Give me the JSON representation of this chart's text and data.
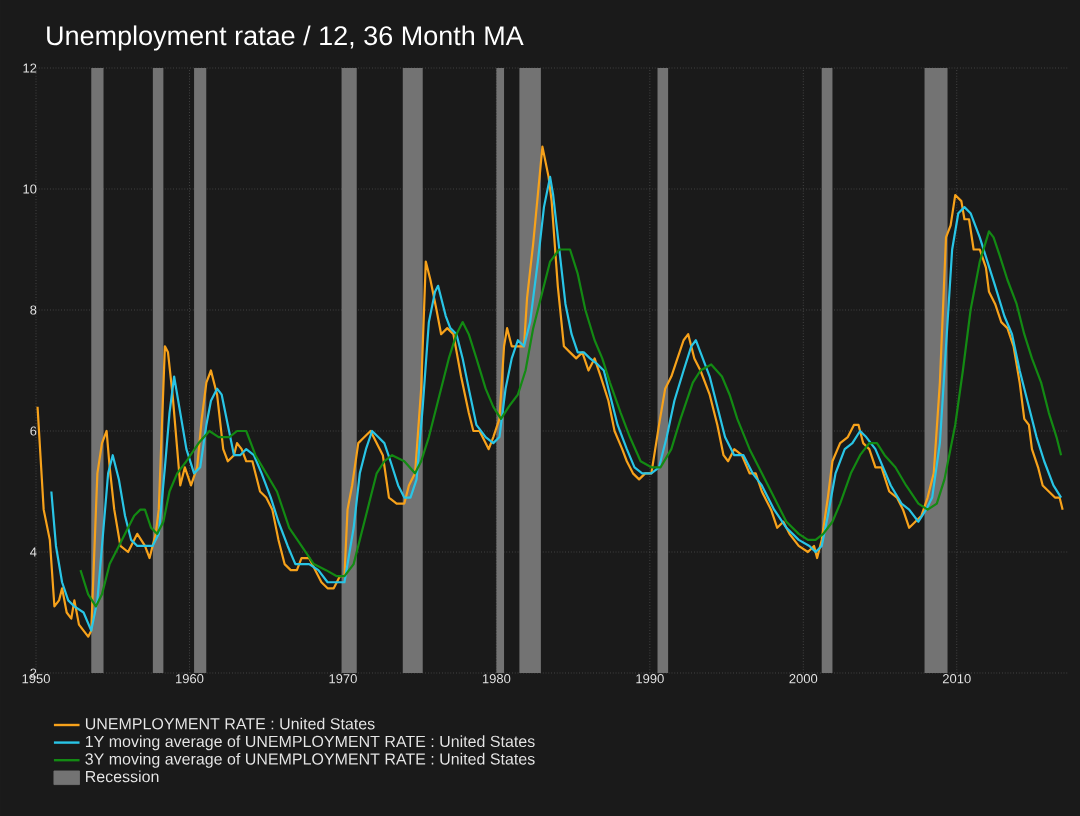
{
  "chart_data": {
    "type": "line",
    "title": "Unemployment ratae / 12, 36 Month MA",
    "xlim": [
      1950,
      2017.25
    ],
    "xticks": [
      1950,
      1960,
      1970,
      1980,
      1990,
      2000,
      2010
    ],
    "ylim": [
      2,
      12
    ],
    "yticks": [
      2,
      4,
      6,
      8,
      10,
      12
    ],
    "grid": true,
    "legend": "bottom",
    "bands": [
      {
        "axis": "x",
        "from": 1953.6,
        "to": 1954.4,
        "label": "Recession",
        "color": "#737373"
      },
      {
        "axis": "x",
        "from": 1957.6,
        "to": 1958.3,
        "color": "#737373"
      },
      {
        "axis": "x",
        "from": 1960.3,
        "to": 1961.1,
        "color": "#737373"
      },
      {
        "axis": "x",
        "from": 1969.9,
        "to": 1970.9,
        "color": "#737373"
      },
      {
        "axis": "x",
        "from": 1973.9,
        "to": 1975.2,
        "color": "#737373"
      },
      {
        "axis": "x",
        "from": 1980.0,
        "to": 1980.5,
        "color": "#737373"
      },
      {
        "axis": "x",
        "from": 1981.5,
        "to": 1982.9,
        "color": "#737373"
      },
      {
        "axis": "x",
        "from": 1990.5,
        "to": 1991.2,
        "color": "#737373"
      },
      {
        "axis": "x",
        "from": 2001.2,
        "to": 2001.9,
        "color": "#737373"
      },
      {
        "axis": "x",
        "from": 2007.9,
        "to": 2009.4,
        "color": "#737373"
      }
    ],
    "series": [
      {
        "name": "UNEMPLOYMENT RATE : United States",
        "color": "#f7a21b",
        "x": [
          1950.1,
          1950.5,
          1950.9,
          1951.2,
          1951.5,
          1951.7,
          1952.0,
          1952.3,
          1952.5,
          1952.8,
          1953.4,
          1953.6,
          1954.0,
          1954.3,
          1954.6,
          1954.8,
          1955.1,
          1955.5,
          1956.0,
          1956.6,
          1957.1,
          1957.4,
          1957.8,
          1958.0,
          1958.4,
          1958.6,
          1958.9,
          1959.4,
          1959.7,
          1960.1,
          1960.5,
          1960.8,
          1961.1,
          1961.4,
          1961.8,
          1962.2,
          1962.5,
          1962.9,
          1963.1,
          1963.4,
          1963.7,
          1964.1,
          1964.6,
          1965.0,
          1965.4,
          1965.8,
          1966.2,
          1966.6,
          1967.0,
          1967.3,
          1967.8,
          1968.2,
          1968.6,
          1969.0,
          1969.4,
          1969.8,
          1970.1,
          1970.3,
          1970.6,
          1971.0,
          1971.4,
          1971.8,
          1972.2,
          1972.6,
          1973.0,
          1973.5,
          1974.0,
          1974.3,
          1974.7,
          1975.1,
          1975.4,
          1975.7,
          1976.1,
          1976.4,
          1976.8,
          1977.2,
          1977.7,
          1978.2,
          1978.5,
          1978.9,
          1979.1,
          1979.5,
          1979.8,
          1980.2,
          1980.5,
          1980.7,
          1981.0,
          1981.4,
          1981.8,
          1982.0,
          1982.4,
          1983.0,
          1983.4,
          1983.6,
          1984.0,
          1984.4,
          1984.8,
          1985.2,
          1985.6,
          1986.0,
          1986.4,
          1986.8,
          1987.3,
          1987.7,
          1988.2,
          1988.5,
          1988.9,
          1989.3,
          1989.7,
          1990.1,
          1990.6,
          1991.0,
          1991.4,
          1991.8,
          1992.2,
          1992.5,
          1992.9,
          1993.3,
          1993.9,
          1994.4,
          1994.8,
          1995.1,
          1995.5,
          1996.0,
          1996.5,
          1996.9,
          1997.3,
          1997.9,
          1998.3,
          1998.7,
          1999.1,
          1999.7,
          2000.3,
          2000.7,
          2000.9,
          2001.2,
          2001.6,
          2001.9,
          2002.4,
          2002.9,
          2003.3,
          2003.6,
          2003.9,
          2004.3,
          2004.7,
          2005.1,
          2005.6,
          2006.1,
          2006.5,
          2006.9,
          2007.3,
          2007.7,
          2008.1,
          2008.5,
          2008.9,
          2009.3,
          2009.6,
          2009.9,
          2010.3,
          2010.5,
          2010.8,
          2011.1,
          2011.5,
          2011.9,
          2012.1,
          2012.5,
          2012.9,
          2013.3,
          2013.7,
          2014.1,
          2014.4,
          2014.7,
          2014.9,
          2015.3,
          2015.6,
          2016.0,
          2016.4,
          2016.7,
          2016.9
        ],
        "values": [
          6.4,
          4.7,
          4.2,
          3.1,
          3.2,
          3.4,
          3.0,
          2.9,
          3.2,
          2.8,
          2.6,
          2.7,
          5.3,
          5.8,
          6.0,
          5.4,
          4.7,
          4.1,
          4.0,
          4.3,
          4.1,
          3.9,
          4.3,
          4.7,
          7.4,
          7.3,
          6.6,
          5.1,
          5.4,
          5.1,
          5.4,
          6.2,
          6.8,
          7.0,
          6.6,
          5.7,
          5.5,
          5.6,
          5.8,
          5.7,
          5.5,
          5.5,
          5.0,
          4.9,
          4.7,
          4.2,
          3.8,
          3.7,
          3.7,
          3.9,
          3.9,
          3.7,
          3.5,
          3.4,
          3.4,
          3.6,
          3.6,
          4.7,
          5.1,
          5.8,
          5.9,
          6.0,
          5.8,
          5.6,
          4.9,
          4.8,
          4.8,
          5.1,
          5.3,
          6.7,
          8.8,
          8.5,
          8.0,
          7.6,
          7.7,
          7.6,
          6.9,
          6.3,
          6.0,
          6.0,
          5.9,
          5.7,
          5.9,
          6.2,
          7.4,
          7.7,
          7.4,
          7.4,
          7.4,
          8.2,
          9.1,
          10.7,
          10.2,
          9.8,
          8.4,
          7.4,
          7.3,
          7.2,
          7.3,
          7.0,
          7.2,
          6.9,
          6.5,
          6.0,
          5.7,
          5.5,
          5.3,
          5.2,
          5.3,
          5.3,
          6.1,
          6.7,
          6.9,
          7.2,
          7.5,
          7.6,
          7.2,
          7.0,
          6.6,
          6.1,
          5.6,
          5.5,
          5.7,
          5.6,
          5.3,
          5.3,
          5.0,
          4.7,
          4.4,
          4.5,
          4.3,
          4.1,
          4.0,
          4.1,
          3.9,
          4.2,
          4.9,
          5.5,
          5.8,
          5.9,
          6.1,
          6.1,
          5.8,
          5.7,
          5.4,
          5.4,
          5.0,
          4.9,
          4.7,
          4.4,
          4.5,
          4.6,
          4.9,
          5.3,
          6.8,
          9.2,
          9.4,
          9.9,
          9.8,
          9.5,
          9.5,
          9.0,
          9.0,
          8.7,
          8.3,
          8.1,
          7.8,
          7.7,
          7.4,
          6.8,
          6.2,
          6.1,
          5.7,
          5.4,
          5.1,
          5.0,
          4.9,
          4.9,
          4.7
        ]
      },
      {
        "name": "1Y moving average of UNEMPLOYMENT RATE : United States",
        "color": "#29c5e6",
        "x": [
          1951.0,
          1951.3,
          1951.7,
          1952.1,
          1952.5,
          1953.1,
          1953.6,
          1954.0,
          1954.4,
          1954.7,
          1955.0,
          1955.4,
          1955.8,
          1956.2,
          1956.6,
          1957.1,
          1957.6,
          1958.0,
          1958.4,
          1958.7,
          1959.0,
          1959.4,
          1959.8,
          1960.3,
          1960.7,
          1961.1,
          1961.4,
          1961.8,
          1962.1,
          1962.5,
          1962.9,
          1963.3,
          1963.7,
          1964.2,
          1964.7,
          1965.3,
          1965.8,
          1966.4,
          1966.9,
          1967.4,
          1967.8,
          1968.4,
          1969.0,
          1969.6,
          1970.1,
          1970.7,
          1971.1,
          1971.5,
          1971.9,
          1972.3,
          1972.7,
          1973.1,
          1973.6,
          1974.0,
          1974.4,
          1974.8,
          1975.2,
          1975.6,
          1976.0,
          1976.2,
          1976.7,
          1977.0,
          1977.4,
          1977.8,
          1978.2,
          1978.7,
          1979.3,
          1979.8,
          1980.2,
          1980.6,
          1981.0,
          1981.4,
          1981.8,
          1982.2,
          1982.7,
          1983.1,
          1983.5,
          1983.7,
          1984.1,
          1984.5,
          1984.9,
          1985.3,
          1985.7,
          1986.1,
          1986.6,
          1987.0,
          1987.4,
          1987.9,
          1988.5,
          1989.0,
          1989.5,
          1990.1,
          1990.6,
          1991.1,
          1991.6,
          1992.2,
          1992.7,
          1993.0,
          1993.3,
          1993.9,
          1994.4,
          1994.9,
          1995.5,
          1996.1,
          1996.7,
          1997.3,
          1998.1,
          1998.9,
          1999.7,
          2000.4,
          2000.8,
          2001.2,
          2001.6,
          2002.1,
          2002.7,
          2003.2,
          2003.7,
          2004.1,
          2004.7,
          2005.2,
          2005.7,
          2006.4,
          2006.9,
          2007.5,
          2008.0,
          2008.4,
          2008.9,
          2009.3,
          2009.7,
          2010.1,
          2010.5,
          2010.9,
          2011.5,
          2012.0,
          2012.5,
          2013.1,
          2013.6,
          2014.1,
          2014.7,
          2015.2,
          2015.7,
          2016.3,
          2016.8
        ],
        "values": [
          5.0,
          4.1,
          3.5,
          3.2,
          3.1,
          3.0,
          2.7,
          3.2,
          4.4,
          5.3,
          5.6,
          5.2,
          4.6,
          4.2,
          4.1,
          4.1,
          4.1,
          4.3,
          5.4,
          6.3,
          6.9,
          6.3,
          5.7,
          5.3,
          5.4,
          6.1,
          6.5,
          6.7,
          6.6,
          6.1,
          5.6,
          5.6,
          5.7,
          5.6,
          5.3,
          4.9,
          4.5,
          4.1,
          3.8,
          3.8,
          3.8,
          3.7,
          3.5,
          3.5,
          3.5,
          4.4,
          5.3,
          5.7,
          6.0,
          5.9,
          5.8,
          5.5,
          5.1,
          4.9,
          4.9,
          5.2,
          6.4,
          7.8,
          8.3,
          8.4,
          7.9,
          7.7,
          7.6,
          7.2,
          6.7,
          6.1,
          5.9,
          5.8,
          5.9,
          6.7,
          7.2,
          7.5,
          7.4,
          7.8,
          8.8,
          9.7,
          10.2,
          9.9,
          9.0,
          8.1,
          7.6,
          7.3,
          7.3,
          7.2,
          7.1,
          7.0,
          6.6,
          6.1,
          5.7,
          5.4,
          5.3,
          5.3,
          5.4,
          5.9,
          6.5,
          7.0,
          7.4,
          7.5,
          7.3,
          6.9,
          6.4,
          5.9,
          5.6,
          5.6,
          5.3,
          5.1,
          4.7,
          4.4,
          4.2,
          4.1,
          4.0,
          4.1,
          4.6,
          5.3,
          5.7,
          5.8,
          6.0,
          5.9,
          5.7,
          5.4,
          5.1,
          4.8,
          4.7,
          4.5,
          4.7,
          4.9,
          5.8,
          7.4,
          9.0,
          9.6,
          9.7,
          9.6,
          9.2,
          8.8,
          8.4,
          7.9,
          7.6,
          7.0,
          6.4,
          5.9,
          5.5,
          5.1,
          4.9
        ]
      },
      {
        "name": "3Y moving average of UNEMPLOYMENT RATE : United States",
        "color": "#138a13",
        "x": [
          1952.9,
          1953.4,
          1953.9,
          1954.3,
          1954.8,
          1955.4,
          1956.0,
          1956.4,
          1956.8,
          1957.1,
          1957.5,
          1957.9,
          1958.3,
          1958.7,
          1959.2,
          1959.8,
          1960.6,
          1961.3,
          1961.9,
          1962.6,
          1963.1,
          1963.7,
          1964.3,
          1965.0,
          1965.7,
          1966.5,
          1967.3,
          1968.1,
          1968.9,
          1969.6,
          1970.1,
          1970.7,
          1971.2,
          1971.7,
          1972.2,
          1972.7,
          1973.2,
          1974.0,
          1974.7,
          1975.1,
          1975.6,
          1976.2,
          1976.9,
          1977.4,
          1977.8,
          1978.2,
          1978.7,
          1979.3,
          1979.8,
          1980.3,
          1980.8,
          1981.4,
          1981.9,
          1982.4,
          1983.0,
          1983.5,
          1984.1,
          1984.8,
          1985.3,
          1985.8,
          1986.4,
          1986.9,
          1987.4,
          1988.1,
          1988.7,
          1989.4,
          1990.1,
          1990.7,
          1991.4,
          1992.0,
          1992.8,
          1993.3,
          1994.0,
          1994.7,
          1995.2,
          1995.7,
          1996.5,
          1997.3,
          1998.1,
          1998.9,
          1999.7,
          2000.3,
          2000.8,
          2001.3,
          2001.9,
          2002.4,
          2003.1,
          2003.7,
          2004.3,
          2004.8,
          2005.3,
          2006.0,
          2006.7,
          2007.5,
          2008.1,
          2008.7,
          2009.2,
          2009.9,
          2010.4,
          2010.9,
          2011.5,
          2012.1,
          2012.4,
          2012.8,
          2013.3,
          2013.9,
          2014.4,
          2014.9,
          2015.5,
          2016.0,
          2016.5,
          2016.8
        ],
        "values": [
          3.7,
          3.3,
          3.1,
          3.3,
          3.8,
          4.1,
          4.4,
          4.6,
          4.7,
          4.7,
          4.4,
          4.3,
          4.5,
          5.0,
          5.3,
          5.5,
          5.8,
          6.0,
          5.9,
          5.9,
          6.0,
          6.0,
          5.6,
          5.3,
          5.0,
          4.4,
          4.1,
          3.8,
          3.7,
          3.6,
          3.6,
          3.8,
          4.3,
          4.8,
          5.3,
          5.5,
          5.6,
          5.5,
          5.3,
          5.5,
          5.9,
          6.5,
          7.2,
          7.6,
          7.8,
          7.6,
          7.2,
          6.7,
          6.4,
          6.2,
          6.4,
          6.6,
          7.0,
          7.7,
          8.3,
          8.8,
          9.0,
          9.0,
          8.6,
          8.0,
          7.5,
          7.2,
          6.8,
          6.3,
          5.9,
          5.5,
          5.4,
          5.4,
          5.7,
          6.2,
          6.8,
          7.0,
          7.1,
          6.9,
          6.6,
          6.2,
          5.7,
          5.3,
          4.9,
          4.5,
          4.3,
          4.2,
          4.2,
          4.3,
          4.5,
          4.8,
          5.3,
          5.6,
          5.8,
          5.8,
          5.6,
          5.4,
          5.1,
          4.8,
          4.7,
          4.8,
          5.2,
          6.1,
          7.0,
          8.0,
          8.8,
          9.3,
          9.2,
          8.9,
          8.5,
          8.1,
          7.6,
          7.2,
          6.8,
          6.3,
          5.9,
          5.6
        ]
      }
    ]
  }
}
